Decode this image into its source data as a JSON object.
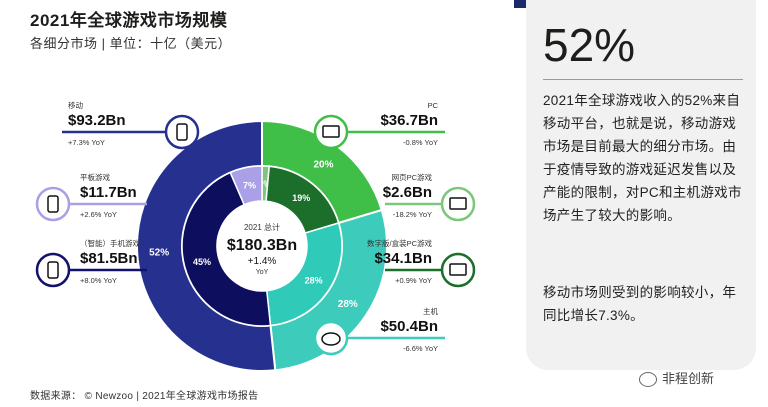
{
  "header": {
    "title": "2021年全球游戏市场规模",
    "subtitle": "各细分市场 | 单位：十亿（美元）"
  },
  "center": {
    "line1": "2021 总计",
    "value": "$180.3Bn",
    "growth": "+1.4%",
    "growth_unit": "YoY"
  },
  "panel": {
    "headline": "52%",
    "paragraph1": "2021年全球游戏收入的52%来自移动平台，也就是说，移动游戏市场是目前最大的细分市场。由于疫情导致的游戏延迟发售以及产能的限制，对PC和主机游戏市场产生了较大的影响。",
    "paragraph2": "移动市场则受到的影响较小，年同比增长7.3%。"
  },
  "footer": {
    "source": "数据来源： © Newzoo | 2021年全球游戏市场报告",
    "wechat": "非程创新"
  },
  "colors": {
    "mobile_dark": "#26318f",
    "mobile_mid": "#0c0c5c",
    "tablet": "#a9a0e8",
    "smartphone": "#12126b",
    "pc_green": "#3fbf47",
    "browser_pc": "#1b6f2a",
    "console": "#3dcbbc",
    "console_inner": "#2fcab8"
  },
  "chart_data": {
    "type": "pie",
    "outer_ring": [
      {
        "name": "移动",
        "label": "$93.2Bn",
        "growth": "+7.3% YoY",
        "value": 93.2,
        "percent": "52%"
      },
      {
        "name": "PC",
        "label": "$36.7Bn",
        "growth": "-0.8% YoY",
        "value": 36.7,
        "percent": "20%"
      },
      {
        "name": "主机",
        "label": "$50.4Bn",
        "growth": "-6.6% YoY",
        "value": 50.4,
        "percent": "28%"
      }
    ],
    "inner_ring": [
      {
        "name": "（智能）手机游戏",
        "label": "$81.5Bn",
        "growth": "+8.0% YoY",
        "value": 81.5,
        "percent": "45%"
      },
      {
        "name": "平板游戏",
        "label": "$11.7Bn",
        "growth": "+2.6% YoY",
        "value": 11.7,
        "percent": "7%"
      },
      {
        "name": "网页PC游戏",
        "label": "$2.6Bn",
        "growth": "-18.2% YoY",
        "value": 2.6,
        "percent": "1%"
      },
      {
        "name": "数字版/盒装PC游戏",
        "label": "$34.1Bn",
        "growth": "+0.9% YoY",
        "value": 34.1,
        "percent": "19%"
      },
      {
        "name": "主机",
        "label": "$50.4Bn",
        "growth": "-6.6% YoY",
        "value": 50.4,
        "percent": "28%"
      }
    ],
    "total": 180.3
  }
}
